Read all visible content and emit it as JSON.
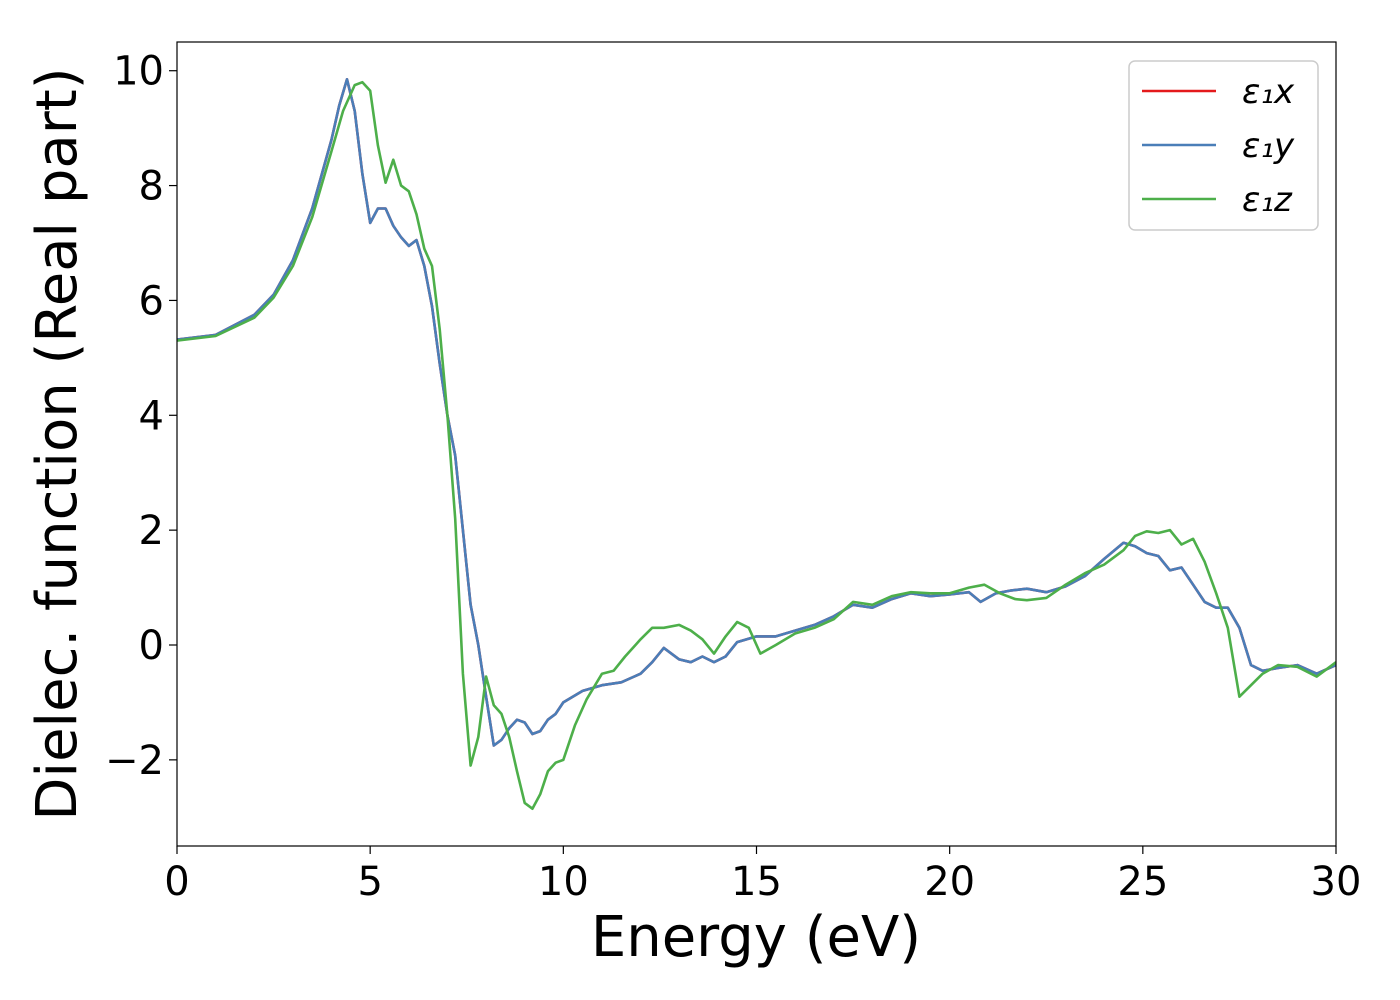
{
  "chart_data": {
    "type": "line",
    "title": "",
    "xlabel": "Energy (eV)",
    "ylabel": "Dielec. function (Real part)",
    "xlim": [
      0,
      30
    ],
    "ylim": [
      -3.5,
      10.5
    ],
    "xticks": [
      0,
      5,
      10,
      15,
      20,
      25,
      30
    ],
    "yticks": [
      -2,
      0,
      2,
      4,
      6,
      8,
      10
    ],
    "xtick_labels": [
      "0",
      "5",
      "10",
      "15",
      "20",
      "25",
      "30"
    ],
    "ytick_labels": [
      "−2",
      "0",
      "2",
      "4",
      "6",
      "8",
      "10"
    ],
    "grid": false,
    "legend_position": "top-right",
    "series": [
      {
        "name": "ε₁x",
        "color": "#e41a1c",
        "x": [
          0,
          1,
          2,
          2.5,
          3,
          3.5,
          4,
          4.2,
          4.4,
          4.6,
          4.8,
          5.0,
          5.2,
          5.4,
          5.6,
          5.8,
          6.0,
          6.2,
          6.4,
          6.6,
          6.8,
          7.0,
          7.2,
          7.4,
          7.6,
          7.8,
          8.0,
          8.2,
          8.4,
          8.6,
          8.8,
          9.0,
          9.2,
          9.4,
          9.6,
          9.8,
          10.0,
          10.5,
          11,
          11.5,
          12,
          12.3,
          12.6,
          13,
          13.3,
          13.6,
          13.9,
          14.2,
          14.5,
          15,
          15.5,
          16,
          16.5,
          17,
          17.5,
          18,
          18.5,
          19,
          19.5,
          20,
          20.5,
          20.8,
          21.2,
          21.6,
          22,
          22.5,
          23,
          23.5,
          24,
          24.5,
          24.8,
          25.1,
          25.4,
          25.7,
          26.0,
          26.3,
          26.6,
          26.9,
          27.2,
          27.5,
          27.8,
          28.1,
          28.5,
          29,
          29.5,
          30
        ],
        "y": [
          5.32,
          5.4,
          5.75,
          6.1,
          6.7,
          7.6,
          8.8,
          9.4,
          9.85,
          9.3,
          8.2,
          7.35,
          7.6,
          7.6,
          7.3,
          7.1,
          6.95,
          7.05,
          6.6,
          5.9,
          4.9,
          4.0,
          3.3,
          2.0,
          0.7,
          0.0,
          -0.9,
          -1.75,
          -1.65,
          -1.45,
          -1.3,
          -1.35,
          -1.55,
          -1.5,
          -1.3,
          -1.2,
          -1.0,
          -0.8,
          -0.7,
          -0.65,
          -0.5,
          -0.3,
          -0.05,
          -0.25,
          -0.3,
          -0.2,
          -0.3,
          -0.2,
          0.05,
          0.15,
          0.15,
          0.25,
          0.35,
          0.5,
          0.7,
          0.65,
          0.8,
          0.9,
          0.85,
          0.88,
          0.92,
          0.75,
          0.9,
          0.95,
          0.98,
          0.92,
          1.02,
          1.2,
          1.5,
          1.78,
          1.72,
          1.6,
          1.55,
          1.3,
          1.35,
          1.05,
          0.75,
          0.65,
          0.65,
          0.3,
          -0.35,
          -0.45,
          -0.4,
          -0.35,
          -0.5,
          -0.35
        ]
      },
      {
        "name": "ε₁y",
        "color": "#4a7eb8",
        "x": [
          0,
          1,
          2,
          2.5,
          3,
          3.5,
          4,
          4.2,
          4.4,
          4.6,
          4.8,
          5.0,
          5.2,
          5.4,
          5.6,
          5.8,
          6.0,
          6.2,
          6.4,
          6.6,
          6.8,
          7.0,
          7.2,
          7.4,
          7.6,
          7.8,
          8.0,
          8.2,
          8.4,
          8.6,
          8.8,
          9.0,
          9.2,
          9.4,
          9.6,
          9.8,
          10.0,
          10.5,
          11,
          11.5,
          12,
          12.3,
          12.6,
          13,
          13.3,
          13.6,
          13.9,
          14.2,
          14.5,
          15,
          15.5,
          16,
          16.5,
          17,
          17.5,
          18,
          18.5,
          19,
          19.5,
          20,
          20.5,
          20.8,
          21.2,
          21.6,
          22,
          22.5,
          23,
          23.5,
          24,
          24.5,
          24.8,
          25.1,
          25.4,
          25.7,
          26.0,
          26.3,
          26.6,
          26.9,
          27.2,
          27.5,
          27.8,
          28.1,
          28.5,
          29,
          29.5,
          30
        ],
        "y": [
          5.32,
          5.4,
          5.75,
          6.1,
          6.7,
          7.6,
          8.8,
          9.4,
          9.85,
          9.3,
          8.2,
          7.35,
          7.6,
          7.6,
          7.3,
          7.1,
          6.95,
          7.05,
          6.6,
          5.9,
          4.9,
          4.0,
          3.3,
          2.0,
          0.7,
          0.0,
          -0.9,
          -1.75,
          -1.65,
          -1.45,
          -1.3,
          -1.35,
          -1.55,
          -1.5,
          -1.3,
          -1.2,
          -1.0,
          -0.8,
          -0.7,
          -0.65,
          -0.5,
          -0.3,
          -0.05,
          -0.25,
          -0.3,
          -0.2,
          -0.3,
          -0.2,
          0.05,
          0.15,
          0.15,
          0.25,
          0.35,
          0.5,
          0.7,
          0.65,
          0.8,
          0.9,
          0.85,
          0.88,
          0.92,
          0.75,
          0.9,
          0.95,
          0.98,
          0.92,
          1.02,
          1.2,
          1.5,
          1.78,
          1.72,
          1.6,
          1.55,
          1.3,
          1.35,
          1.05,
          0.75,
          0.65,
          0.65,
          0.3,
          -0.35,
          -0.45,
          -0.4,
          -0.35,
          -0.5,
          -0.35
        ]
      },
      {
        "name": "ε₁z",
        "color": "#4daf4a",
        "x": [
          0,
          1,
          2,
          2.5,
          3,
          3.5,
          4,
          4.3,
          4.6,
          4.8,
          5.0,
          5.2,
          5.4,
          5.6,
          5.8,
          6.0,
          6.2,
          6.4,
          6.6,
          6.8,
          7.0,
          7.2,
          7.4,
          7.6,
          7.8,
          8.0,
          8.2,
          8.4,
          8.6,
          8.8,
          9.0,
          9.2,
          9.4,
          9.6,
          9.8,
          10.0,
          10.3,
          10.6,
          11,
          11.3,
          11.6,
          12,
          12.3,
          12.6,
          13,
          13.3,
          13.6,
          13.9,
          14.2,
          14.5,
          14.8,
          15.1,
          15.5,
          16,
          16.5,
          17,
          17.5,
          18,
          18.5,
          19,
          19.5,
          20,
          20.5,
          20.9,
          21.3,
          21.7,
          22,
          22.5,
          23,
          23.5,
          24,
          24.5,
          24.8,
          25.1,
          25.4,
          25.7,
          26.0,
          26.3,
          26.6,
          26.9,
          27.2,
          27.5,
          27.8,
          28.1,
          28.5,
          29,
          29.5,
          30
        ],
        "y": [
          5.3,
          5.38,
          5.7,
          6.05,
          6.6,
          7.45,
          8.6,
          9.3,
          9.75,
          9.8,
          9.65,
          8.7,
          8.05,
          8.45,
          8.0,
          7.9,
          7.5,
          6.9,
          6.6,
          5.5,
          4.0,
          2.2,
          -0.5,
          -2.1,
          -1.6,
          -0.55,
          -1.05,
          -1.2,
          -1.6,
          -2.2,
          -2.75,
          -2.85,
          -2.6,
          -2.2,
          -2.05,
          -2.0,
          -1.4,
          -0.95,
          -0.5,
          -0.45,
          -0.2,
          0.1,
          0.3,
          0.3,
          0.35,
          0.25,
          0.1,
          -0.15,
          0.15,
          0.4,
          0.3,
          -0.15,
          0.0,
          0.2,
          0.3,
          0.45,
          0.75,
          0.7,
          0.85,
          0.92,
          0.9,
          0.9,
          1.0,
          1.05,
          0.9,
          0.8,
          0.78,
          0.82,
          1.05,
          1.25,
          1.4,
          1.65,
          1.9,
          1.98,
          1.95,
          2.0,
          1.75,
          1.85,
          1.45,
          0.9,
          0.3,
          -0.9,
          -0.7,
          -0.5,
          -0.35,
          -0.38,
          -0.55,
          -0.3
        ]
      }
    ]
  }
}
